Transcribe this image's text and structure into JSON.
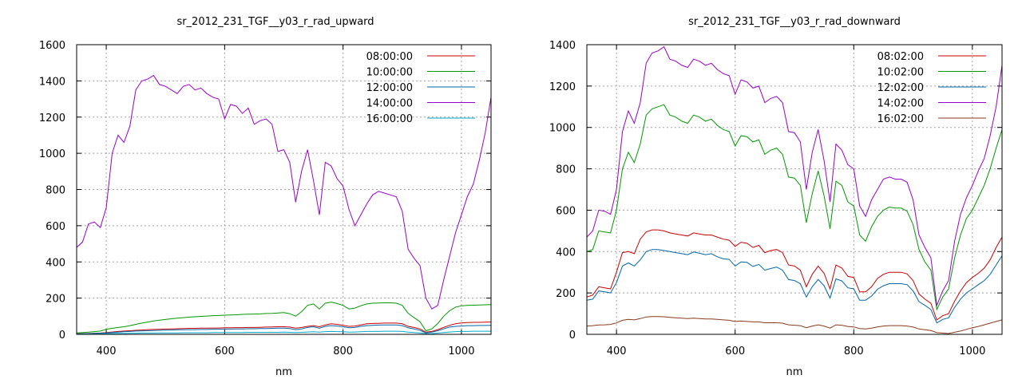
{
  "chart_data": [
    {
      "type": "line",
      "title": "sr_2012_231_TGF__y03_r_rad_upward",
      "xlabel": "nm",
      "ylabel": "",
      "xlim": [
        350,
        1050
      ],
      "ylim": [
        0,
        1600
      ],
      "xticks": [
        400,
        600,
        800,
        1000
      ],
      "yticks": [
        0,
        200,
        400,
        600,
        800,
        1000,
        1200,
        1400,
        1600
      ],
      "grid": true,
      "legend_position": "top-right",
      "x": [
        350,
        360,
        370,
        380,
        390,
        400,
        410,
        420,
        430,
        440,
        450,
        460,
        470,
        480,
        490,
        500,
        510,
        520,
        530,
        540,
        550,
        560,
        570,
        580,
        590,
        600,
        610,
        620,
        630,
        640,
        650,
        660,
        670,
        680,
        690,
        700,
        710,
        720,
        730,
        740,
        750,
        760,
        770,
        780,
        790,
        800,
        810,
        820,
        830,
        840,
        850,
        860,
        870,
        880,
        890,
        900,
        910,
        920,
        930,
        940,
        950,
        960,
        970,
        980,
        990,
        1000,
        1010,
        1020,
        1030,
        1040,
        1050
      ],
      "series": [
        {
          "name": "08:00:00",
          "color": "#cc0000",
          "values": [
            3,
            4,
            5,
            6,
            7,
            10,
            13,
            16,
            18,
            20,
            22,
            24,
            26,
            27,
            28,
            29,
            30,
            31,
            32,
            33,
            33,
            34,
            34,
            35,
            35,
            36,
            36,
            37,
            37,
            38,
            38,
            39,
            40,
            41,
            42,
            42,
            40,
            34,
            38,
            44,
            48,
            42,
            52,
            58,
            55,
            50,
            44,
            46,
            52,
            58,
            60,
            61,
            62,
            62,
            62,
            58,
            44,
            38,
            30,
            12,
            16,
            26,
            38,
            50,
            58,
            63,
            65,
            66,
            66,
            67,
            68
          ]
        },
        {
          "name": "10:00:00",
          "color": "#009900",
          "values": [
            8,
            10,
            12,
            15,
            18,
            28,
            33,
            38,
            42,
            48,
            55,
            62,
            68,
            74,
            78,
            82,
            86,
            89,
            92,
            95,
            97,
            99,
            101,
            103,
            104,
            106,
            107,
            108,
            110,
            111,
            112,
            113,
            115,
            116,
            118,
            120,
            114,
            100,
            125,
            160,
            168,
            140,
            172,
            178,
            170,
            160,
            140,
            145,
            158,
            168,
            172,
            173,
            174,
            174,
            172,
            160,
            116,
            92,
            70,
            20,
            30,
            60,
            100,
            130,
            150,
            158,
            160,
            161,
            162,
            163,
            164
          ]
        },
        {
          "name": "12:00:00",
          "color": "#0066aa",
          "values": [
            2,
            3,
            4,
            5,
            6,
            8,
            10,
            12,
            14,
            16,
            18,
            19,
            20,
            21,
            22,
            23,
            24,
            25,
            25,
            26,
            26,
            27,
            27,
            28,
            28,
            29,
            29,
            30,
            30,
            31,
            31,
            32,
            32,
            33,
            34,
            34,
            32,
            26,
            30,
            38,
            42,
            34,
            44,
            48,
            46,
            42,
            36,
            38,
            44,
            48,
            50,
            51,
            52,
            52,
            52,
            48,
            36,
            30,
            22,
            8,
            12,
            20,
            30,
            40,
            44,
            46,
            48,
            48,
            49,
            49,
            50
          ]
        },
        {
          "name": "14:00:00",
          "color": "#9900cc",
          "values": [
            480,
            510,
            610,
            620,
            590,
            700,
            1000,
            1100,
            1060,
            1150,
            1350,
            1400,
            1410,
            1430,
            1380,
            1370,
            1350,
            1330,
            1370,
            1380,
            1350,
            1360,
            1330,
            1310,
            1300,
            1190,
            1270,
            1260,
            1220,
            1250,
            1160,
            1180,
            1190,
            1160,
            1010,
            1020,
            950,
            730,
            900,
            1020,
            850,
            660,
            950,
            930,
            860,
            820,
            690,
            600,
            660,
            720,
            770,
            790,
            780,
            770,
            760,
            680,
            470,
            420,
            380,
            200,
            140,
            160,
            300,
            430,
            560,
            660,
            760,
            830,
            960,
            1110,
            1310
          ]
        },
        {
          "name": "16:00:00",
          "color": "#00aacc",
          "values": [
            1,
            1,
            2,
            2,
            2,
            3,
            4,
            5,
            5,
            6,
            6,
            7,
            7,
            7,
            8,
            8,
            8,
            8,
            9,
            9,
            9,
            9,
            9,
            10,
            10,
            10,
            10,
            10,
            10,
            11,
            11,
            11,
            11,
            11,
            11,
            12,
            11,
            10,
            11,
            13,
            14,
            12,
            15,
            16,
            15,
            14,
            12,
            13,
            14,
            16,
            16,
            16,
            17,
            17,
            17,
            16,
            12,
            10,
            8,
            3,
            4,
            7,
            10,
            13,
            15,
            16,
            16,
            17,
            17,
            17,
            17
          ]
        }
      ]
    },
    {
      "type": "line",
      "title": "sr_2012_231_TGF__y03_r_rad_downward",
      "xlabel": "nm",
      "ylabel": "",
      "xlim": [
        350,
        1050
      ],
      "ylim": [
        0,
        1400
      ],
      "xticks": [
        400,
        600,
        800,
        1000
      ],
      "yticks": [
        0,
        200,
        400,
        600,
        800,
        1000,
        1200,
        1400
      ],
      "grid": true,
      "legend_position": "top-right",
      "x": [
        350,
        360,
        370,
        380,
        390,
        400,
        410,
        420,
        430,
        440,
        450,
        460,
        470,
        480,
        490,
        500,
        510,
        520,
        530,
        540,
        550,
        560,
        570,
        580,
        590,
        600,
        610,
        620,
        630,
        640,
        650,
        660,
        670,
        680,
        690,
        700,
        710,
        720,
        730,
        740,
        750,
        760,
        770,
        780,
        790,
        800,
        810,
        820,
        830,
        840,
        850,
        860,
        870,
        880,
        890,
        900,
        910,
        920,
        930,
        940,
        950,
        960,
        970,
        980,
        990,
        1000,
        1010,
        1020,
        1030,
        1040,
        1050
      ],
      "series": [
        {
          "name": "08:02:00",
          "color": "#cc0000",
          "values": [
            180,
            190,
            230,
            225,
            220,
            300,
            395,
            400,
            390,
            460,
            495,
            505,
            505,
            500,
            490,
            485,
            480,
            475,
            490,
            485,
            480,
            480,
            470,
            460,
            455,
            425,
            445,
            440,
            420,
            430,
            395,
            405,
            410,
            395,
            335,
            330,
            310,
            230,
            290,
            330,
            295,
            220,
            335,
            320,
            280,
            275,
            205,
            205,
            230,
            270,
            290,
            300,
            300,
            300,
            292,
            260,
            195,
            170,
            150,
            70,
            90,
            100,
            160,
            210,
            250,
            275,
            295,
            320,
            360,
            420,
            470
          ]
        },
        {
          "name": "10:02:00",
          "color": "#009900",
          "values": [
            400,
            410,
            500,
            495,
            490,
            600,
            800,
            880,
            830,
            920,
            1060,
            1090,
            1100,
            1110,
            1060,
            1050,
            1030,
            1020,
            1060,
            1050,
            1030,
            1040,
            1010,
            990,
            980,
            910,
            960,
            955,
            930,
            940,
            870,
            890,
            900,
            870,
            760,
            755,
            720,
            540,
            680,
            790,
            670,
            510,
            740,
            720,
            640,
            620,
            480,
            450,
            520,
            570,
            600,
            615,
            610,
            610,
            595,
            530,
            410,
            350,
            310,
            120,
            180,
            220,
            370,
            480,
            560,
            600,
            660,
            720,
            800,
            900,
            990
          ]
        },
        {
          "name": "12:02:00",
          "color": "#0066aa",
          "values": [
            165,
            170,
            210,
            205,
            200,
            250,
            330,
            345,
            330,
            360,
            400,
            410,
            410,
            405,
            400,
            395,
            390,
            385,
            398,
            392,
            385,
            390,
            375,
            365,
            362,
            330,
            350,
            348,
            328,
            338,
            310,
            318,
            325,
            310,
            265,
            260,
            245,
            180,
            230,
            265,
            235,
            175,
            268,
            258,
            225,
            220,
            165,
            165,
            185,
            218,
            235,
            245,
            245,
            245,
            240,
            210,
            158,
            140,
            120,
            55,
            72,
            80,
            130,
            170,
            200,
            220,
            240,
            260,
            290,
            335,
            380
          ]
        },
        {
          "name": "14:02:00",
          "color": "#9900cc",
          "values": [
            470,
            500,
            600,
            595,
            580,
            700,
            980,
            1080,
            1020,
            1120,
            1310,
            1360,
            1370,
            1390,
            1330,
            1320,
            1300,
            1290,
            1330,
            1320,
            1300,
            1310,
            1280,
            1260,
            1250,
            1160,
            1230,
            1220,
            1190,
            1200,
            1120,
            1140,
            1150,
            1120,
            980,
            975,
            930,
            700,
            880,
            990,
            840,
            640,
            920,
            890,
            820,
            800,
            620,
            570,
            650,
            700,
            750,
            760,
            750,
            750,
            735,
            650,
            480,
            420,
            370,
            140,
            210,
            260,
            450,
            580,
            660,
            720,
            790,
            850,
            960,
            1100,
            1300
          ]
        },
        {
          "name": "16:02:00",
          "color": "#8b3a1a",
          "values": [
            40,
            42,
            45,
            46,
            48,
            55,
            68,
            72,
            70,
            76,
            84,
            86,
            86,
            85,
            82,
            80,
            78,
            76,
            78,
            76,
            74,
            74,
            72,
            70,
            68,
            62,
            64,
            62,
            60,
            60,
            56,
            56,
            56,
            54,
            46,
            44,
            42,
            32,
            40,
            46,
            40,
            30,
            46,
            44,
            38,
            36,
            28,
            26,
            30,
            36,
            40,
            42,
            42,
            42,
            40,
            35,
            26,
            22,
            18,
            8,
            6,
            4,
            10,
            16,
            24,
            32,
            38,
            46,
            54,
            62,
            70
          ]
        }
      ]
    }
  ]
}
